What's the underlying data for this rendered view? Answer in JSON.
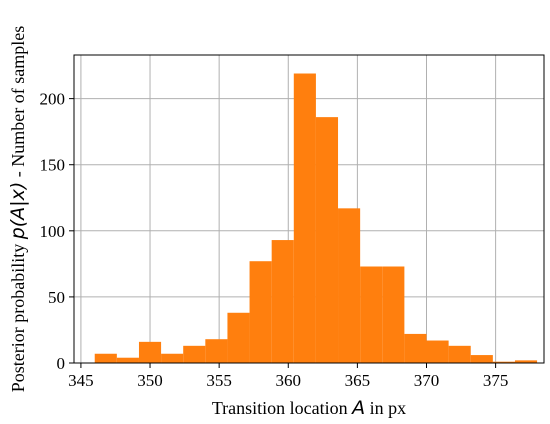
{
  "chart_data": {
    "type": "bar",
    "bins_start": 346,
    "bin_width": 1.6,
    "values": [
      7,
      4,
      16,
      7,
      13,
      18,
      38,
      77,
      93,
      219,
      186,
      117,
      73,
      73,
      22,
      17,
      13,
      6,
      1,
      2
    ],
    "xlim": [
      344.5,
      378.5
    ],
    "ylim": [
      0,
      233
    ],
    "x_ticks": [
      345,
      350,
      355,
      360,
      365,
      370,
      375
    ],
    "y_ticks": [
      0,
      50,
      100,
      150,
      200
    ],
    "x_tick_labels": [
      "345",
      "350",
      "355",
      "360",
      "365",
      "370",
      "375"
    ],
    "y_tick_labels": [
      "0",
      "50",
      "100",
      "150",
      "200"
    ],
    "xlabel": {
      "pre": "Transition location ",
      "math": "A",
      "post": " in px"
    },
    "ylabel": {
      "pre": "Posterior probability ",
      "math": "p(A|x)",
      "post": " - Number of samples"
    },
    "grid": true,
    "bar_color": "#ff7f0e"
  }
}
